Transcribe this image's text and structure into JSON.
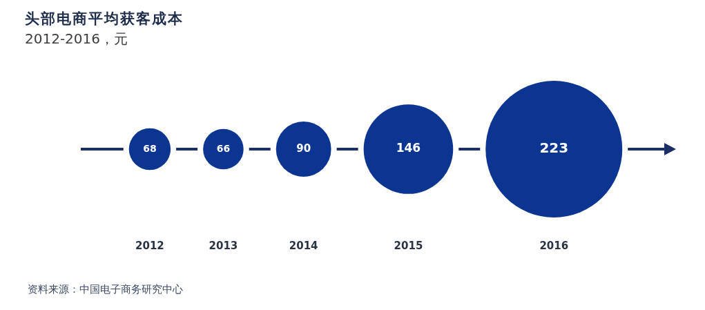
{
  "chart_data": {
    "type": "other",
    "title": "头部电商平均获客成本",
    "subtitle": "2012-2016，元",
    "categories": [
      "2012",
      "2013",
      "2014",
      "2015",
      "2016"
    ],
    "values": [
      68,
      66,
      90,
      146,
      223
    ],
    "color": "#0b3591",
    "data_labels": true,
    "annotations": [
      "资料来源：中国电子商务研究中心"
    ]
  }
}
